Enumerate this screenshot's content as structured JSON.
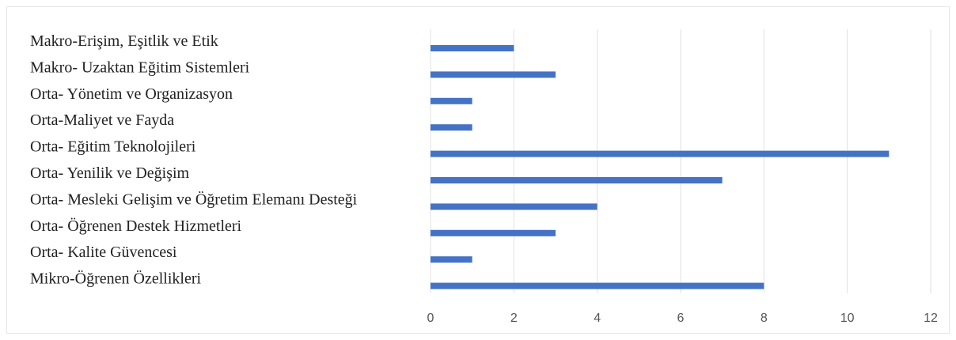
{
  "chart_data": {
    "type": "bar",
    "orientation": "horizontal",
    "categories": [
      "Makro-Erişim, Eşitlik ve Etik",
      "Makro- Uzaktan Eğitim Sistemleri",
      "Orta- Yönetim ve Organizasyon",
      "Orta-Maliyet ve Fayda",
      "Orta- Eğitim Teknolojileri",
      "Orta- Yenilik ve Değişim",
      "Orta- Mesleki Gelişim ve Öğretim Elemanı Desteği",
      "Orta- Öğrenen Destek Hizmetleri",
      "Orta- Kalite Güvencesi",
      "Mikro-Öğrenen Özellikleri"
    ],
    "values": [
      2,
      3,
      1,
      1,
      11,
      7,
      4,
      3,
      1,
      8
    ],
    "xlim": [
      0,
      12
    ],
    "xticks": [
      "0",
      "2",
      "4",
      "6",
      "8",
      "10",
      "12"
    ],
    "grid": "vertical",
    "bar_color": "#4472c4",
    "title": "",
    "xlabel": "",
    "ylabel": ""
  }
}
